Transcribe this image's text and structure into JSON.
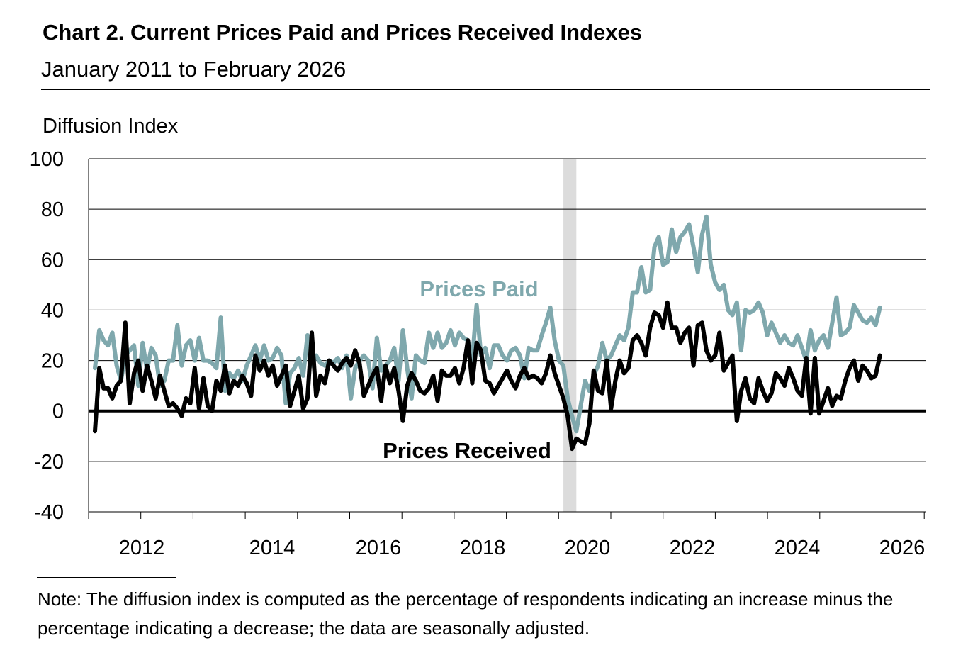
{
  "title": "Chart 2. Current Prices Paid and Prices Received Indexes",
  "subtitle": "January 2011 to February 2026",
  "note": "Note: The diffusion index is computed as the percentage of respondents indicating an increase minus the percentage indicating a decrease; the data are seasonally adjusted.",
  "chart_data": {
    "type": "line",
    "ylabel": "Diffusion Index",
    "xlabel": "",
    "ylim": [
      -40,
      100
    ],
    "yticks": [
      100,
      80,
      60,
      40,
      20,
      0,
      -20,
      -40
    ],
    "xticklabels": [
      "2012",
      "2014",
      "2016",
      "2018",
      "2020",
      "2022",
      "2024",
      "2026"
    ],
    "x_start": "2011-01",
    "x_end": "2026-02",
    "frequency": "monthly",
    "grid": true,
    "legend": "inline labels",
    "shaded_period": {
      "start": "2020-02",
      "end": "2020-04",
      "color": "#dcdcdc"
    },
    "series": [
      {
        "name": "Prices Paid",
        "color": "#7fa8ad",
        "values": [
          17,
          32,
          28,
          26,
          31,
          18,
          12,
          22,
          24,
          26,
          10,
          27,
          16,
          25,
          22,
          10,
          12,
          20,
          20,
          34,
          18,
          26,
          28,
          20,
          29,
          20,
          20,
          19,
          17,
          37,
          8,
          15,
          13,
          16,
          12,
          18,
          22,
          26,
          20,
          26,
          20,
          21,
          25,
          22,
          3,
          15,
          17,
          21,
          14,
          30,
          18,
          22,
          19,
          18,
          20,
          19,
          21,
          17,
          22,
          5,
          17,
          20,
          22,
          20,
          9,
          29,
          16,
          18,
          20,
          25,
          12,
          32,
          17,
          5,
          22,
          20,
          19,
          31,
          25,
          31,
          25,
          27,
          32,
          26,
          31,
          29,
          28,
          20,
          42,
          22,
          25,
          17,
          26,
          26,
          22,
          20,
          24,
          25,
          22,
          13,
          25,
          24,
          24,
          30,
          35,
          41,
          28,
          20,
          18,
          5,
          -2,
          -8,
          2,
          12,
          8,
          14,
          18,
          27,
          20,
          22,
          26,
          30,
          28,
          33,
          47,
          47,
          57,
          47,
          48,
          65,
          69,
          58,
          59,
          72,
          63,
          69,
          71,
          74,
          65,
          55,
          70,
          77,
          58,
          51,
          48,
          50,
          40,
          38,
          43,
          24,
          40,
          39,
          40,
          43,
          39,
          30,
          35,
          31,
          27,
          30,
          27,
          26,
          30,
          25,
          20,
          32,
          24,
          28,
          30,
          25,
          35,
          45,
          30,
          31,
          33,
          42,
          39,
          36,
          35,
          37,
          34,
          41
        ]
      },
      {
        "name": "Prices Received",
        "color": "#000000",
        "values": [
          -8,
          17,
          9,
          9,
          5,
          10,
          12,
          35,
          3,
          15,
          20,
          8,
          18,
          12,
          5,
          14,
          8,
          2,
          3,
          1,
          -2,
          5,
          3,
          17,
          1,
          13,
          2,
          0,
          12,
          8,
          18,
          7,
          12,
          10,
          14,
          11,
          6,
          22,
          16,
          20,
          14,
          18,
          10,
          14,
          18,
          2,
          8,
          14,
          1,
          5,
          31,
          6,
          14,
          11,
          20,
          18,
          16,
          19,
          21,
          18,
          24,
          19,
          6,
          10,
          14,
          17,
          4,
          18,
          11,
          17,
          8,
          -4,
          10,
          15,
          12,
          8,
          7,
          9,
          14,
          4,
          16,
          14,
          14,
          17,
          11,
          17,
          28,
          11,
          27,
          24,
          12,
          11,
          7,
          10,
          13,
          16,
          12,
          9,
          14,
          17,
          13,
          14,
          13,
          11,
          15,
          22,
          15,
          10,
          5,
          -2,
          -15,
          -11,
          -12,
          -13,
          -5,
          16,
          8,
          7,
          20,
          1,
          12,
          20,
          15,
          17,
          28,
          30,
          27,
          22,
          33,
          39,
          38,
          33,
          43,
          33,
          33,
          27,
          31,
          33,
          18,
          34,
          35,
          24,
          20,
          22,
          31,
          16,
          19,
          22,
          -4,
          8,
          13,
          5,
          3,
          13,
          8,
          4,
          7,
          15,
          13,
          10,
          17,
          13,
          8,
          6,
          21,
          -1,
          21,
          -1,
          4,
          9,
          2,
          6,
          5,
          12,
          17,
          20,
          12,
          18,
          16,
          13,
          14,
          22
        ]
      }
    ]
  }
}
